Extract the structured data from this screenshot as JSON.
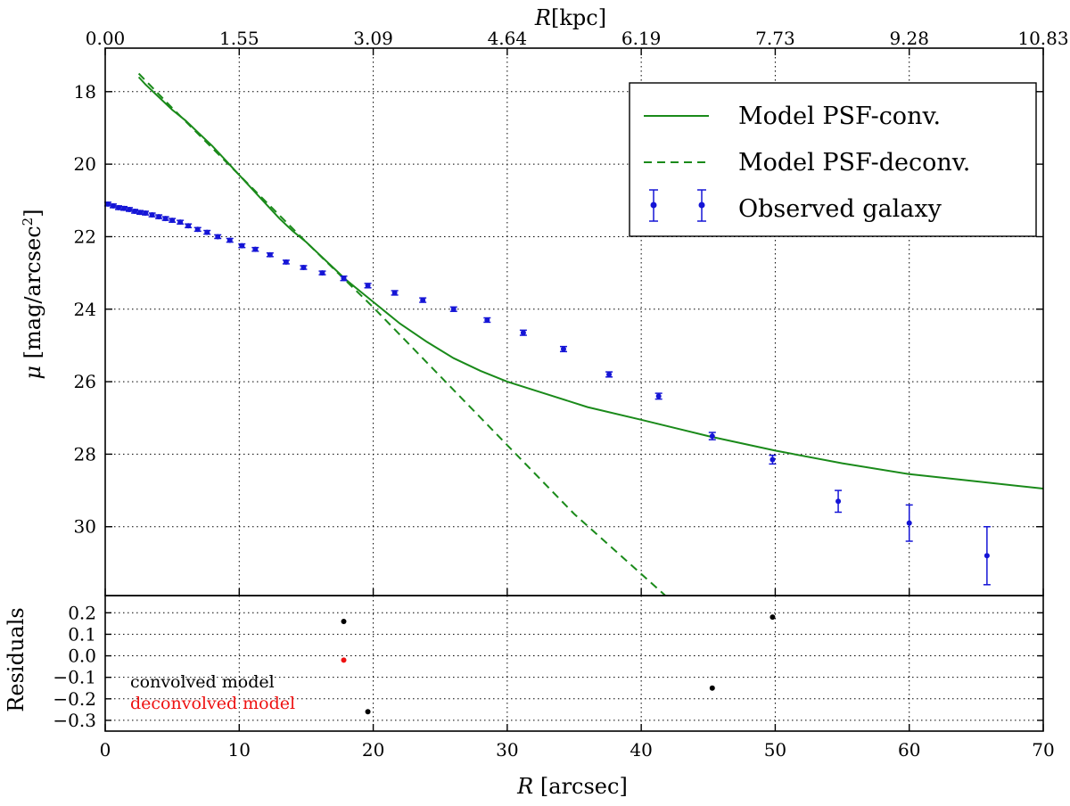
{
  "chart_data": {
    "type": "line",
    "top_axis": {
      "label_symbol": "R",
      "label_unit": "[kpc]",
      "tick_labels": [
        "0.00",
        "1.55",
        "3.09",
        "4.64",
        "6.19",
        "7.73",
        "9.28",
        "10.83"
      ]
    },
    "main_panel": {
      "ylabel_symbol": "μ",
      "ylabel_unit": "[mag/arcsec",
      "ylabel_sup": "2",
      "ylabel_close": "]",
      "xlim": [
        0,
        70
      ],
      "ylim": [
        31.9,
        16.8
      ],
      "y_inverted": true,
      "grid": true,
      "xticks": [
        0,
        10,
        20,
        30,
        40,
        50,
        60,
        70
      ],
      "yticks": [
        18,
        20,
        22,
        24,
        26,
        28,
        30
      ],
      "ytick_labels": [
        "18",
        "20",
        "22",
        "24",
        "26",
        "28",
        "30"
      ],
      "legend_position": "upper-right",
      "series": [
        {
          "name": "Model PSF-conv.",
          "style": "solid",
          "color": "#1a8a1a",
          "x": [
            2.5,
            3,
            4,
            5,
            6,
            7,
            8,
            9,
            10,
            11,
            12,
            13,
            14,
            15,
            16,
            17,
            18,
            19,
            20,
            21,
            22,
            24,
            26,
            28,
            30,
            33,
            36,
            40,
            45,
            50,
            55,
            60,
            65,
            70
          ],
          "y": [
            17.6,
            17.8,
            18.15,
            18.5,
            18.8,
            19.15,
            19.5,
            19.9,
            20.3,
            20.7,
            21.1,
            21.5,
            21.85,
            22.15,
            22.5,
            22.85,
            23.2,
            23.5,
            23.8,
            24.1,
            24.4,
            24.9,
            25.35,
            25.7,
            26.0,
            26.35,
            26.7,
            27.05,
            27.5,
            27.9,
            28.25,
            28.55,
            28.75,
            28.95
          ]
        },
        {
          "name": "Model PSF-deconv.",
          "style": "dashed",
          "color": "#1a8a1a",
          "x": [
            2.5,
            5,
            10,
            15,
            20,
            25,
            30,
            35,
            41.8
          ],
          "y": [
            17.5,
            18.45,
            20.3,
            22.15,
            23.95,
            25.85,
            27.75,
            29.65,
            31.9
          ]
        }
      ],
      "points": {
        "name": "Observed galaxy",
        "color": "#1515d6",
        "x": [
          0.2,
          0.6,
          1.0,
          1.4,
          1.8,
          2.2,
          2.6,
          3.0,
          3.5,
          4.0,
          4.5,
          5.0,
          5.6,
          6.2,
          6.9,
          7.6,
          8.4,
          9.3,
          10.2,
          11.2,
          12.3,
          13.5,
          14.8,
          16.2,
          17.8,
          19.6,
          21.6,
          23.7,
          26.0,
          28.5,
          31.2,
          34.2,
          37.6,
          41.3,
          45.3,
          49.8,
          54.7,
          60.0,
          65.8
        ],
        "y": [
          21.1,
          21.15,
          21.2,
          21.22,
          21.25,
          21.3,
          21.33,
          21.35,
          21.4,
          21.45,
          21.5,
          21.55,
          21.6,
          21.7,
          21.8,
          21.88,
          22.0,
          22.1,
          22.25,
          22.35,
          22.5,
          22.7,
          22.85,
          23.0,
          23.15,
          23.35,
          23.55,
          23.75,
          24.0,
          24.3,
          24.65,
          25.1,
          25.8,
          26.4,
          27.5,
          28.15,
          29.3,
          29.9,
          30.8
        ],
        "yerr": [
          0.05,
          0.05,
          0.05,
          0.05,
          0.05,
          0.05,
          0.05,
          0.05,
          0.05,
          0.05,
          0.05,
          0.05,
          0.05,
          0.05,
          0.05,
          0.05,
          0.05,
          0.05,
          0.05,
          0.05,
          0.05,
          0.05,
          0.05,
          0.05,
          0.06,
          0.06,
          0.06,
          0.06,
          0.06,
          0.06,
          0.07,
          0.07,
          0.07,
          0.08,
          0.1,
          0.12,
          0.3,
          0.5,
          0.8
        ]
      }
    },
    "residuals_panel": {
      "ylabel": "Residuals",
      "xlabel_symbol": "R",
      "xlabel_unit": "[arcsec]",
      "xlim": [
        0,
        70
      ],
      "ylim": [
        -0.35,
        0.28
      ],
      "grid": true,
      "yticks": [
        0.2,
        0.1,
        0.0,
        -0.1,
        -0.2,
        -0.3
      ],
      "ytick_labels": [
        "0.2",
        "0.1",
        "0.0",
        "−0.1",
        "−0.2",
        "−0.3"
      ],
      "xticks": [
        0,
        10,
        20,
        30,
        40,
        50,
        60,
        70
      ],
      "xtick_labels": [
        "0",
        "10",
        "20",
        "30",
        "40",
        "50",
        "60",
        "70"
      ],
      "convolved_points": {
        "label": "convolved model",
        "color": "#000000",
        "x": [
          17.8,
          19.6,
          45.3,
          49.8
        ],
        "y": [
          0.16,
          -0.26,
          -0.15,
          0.18
        ]
      },
      "deconvolved_points": {
        "label": "deconvolved model",
        "color": "#ee1111",
        "x": [
          17.8
        ],
        "y": [
          -0.02
        ]
      }
    }
  }
}
